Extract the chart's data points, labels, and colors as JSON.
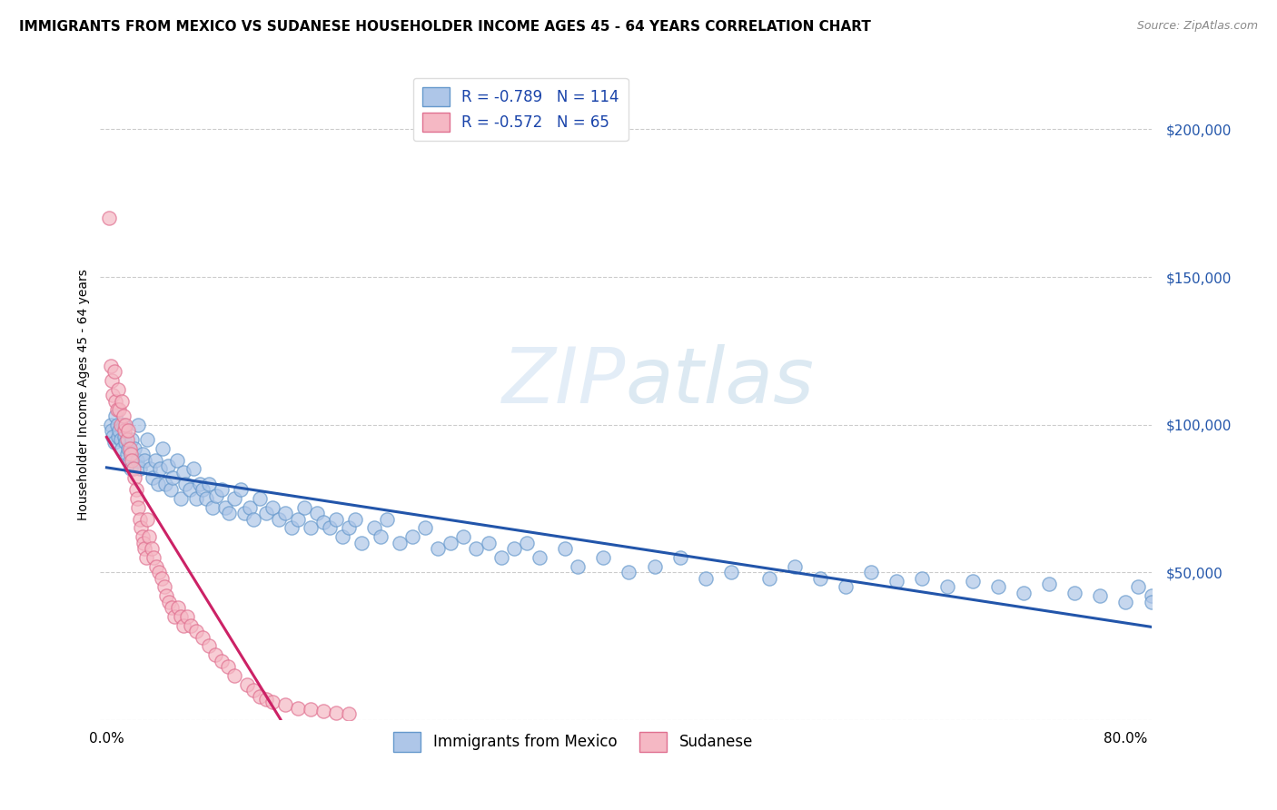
{
  "title": "IMMIGRANTS FROM MEXICO VS SUDANESE HOUSEHOLDER INCOME AGES 45 - 64 YEARS CORRELATION CHART",
  "source": "Source: ZipAtlas.com",
  "ylabel": "Householder Income Ages 45 - 64 years",
  "xlim": [
    -0.005,
    0.82
  ],
  "ylim": [
    0,
    220000
  ],
  "yticks": [
    0,
    50000,
    100000,
    150000,
    200000
  ],
  "ytick_labels": [
    "",
    "$50,000",
    "$100,000",
    "$150,000",
    "$200,000"
  ],
  "xtick_show": [
    0.0,
    0.8
  ],
  "xtick_labels": [
    "0.0%",
    "80.0%"
  ],
  "title_fontsize": 11,
  "source_fontsize": 9,
  "axis_label_fontsize": 10,
  "tick_fontsize": 10,
  "blue_scatter_face": "#aec6e8",
  "blue_scatter_edge": "#6699cc",
  "pink_scatter_face": "#f5b8c4",
  "pink_scatter_edge": "#e07090",
  "line_blue": "#2255aa",
  "line_pink": "#cc2266",
  "watermark_color": "#c8ddf0",
  "R_mexico": -0.789,
  "N_mexico": 114,
  "R_sudanese": -0.572,
  "N_sudanese": 65,
  "mexico_x": [
    0.003,
    0.004,
    0.005,
    0.006,
    0.007,
    0.008,
    0.009,
    0.01,
    0.011,
    0.012,
    0.013,
    0.014,
    0.015,
    0.016,
    0.017,
    0.018,
    0.019,
    0.02,
    0.022,
    0.024,
    0.025,
    0.026,
    0.028,
    0.03,
    0.032,
    0.034,
    0.036,
    0.038,
    0.04,
    0.042,
    0.044,
    0.046,
    0.048,
    0.05,
    0.052,
    0.055,
    0.058,
    0.06,
    0.062,
    0.065,
    0.068,
    0.07,
    0.073,
    0.075,
    0.078,
    0.08,
    0.083,
    0.086,
    0.09,
    0.093,
    0.096,
    0.1,
    0.105,
    0.108,
    0.112,
    0.115,
    0.12,
    0.125,
    0.13,
    0.135,
    0.14,
    0.145,
    0.15,
    0.155,
    0.16,
    0.165,
    0.17,
    0.175,
    0.18,
    0.185,
    0.19,
    0.195,
    0.2,
    0.21,
    0.215,
    0.22,
    0.23,
    0.24,
    0.25,
    0.26,
    0.27,
    0.28,
    0.29,
    0.3,
    0.31,
    0.32,
    0.33,
    0.34,
    0.36,
    0.37,
    0.39,
    0.41,
    0.43,
    0.45,
    0.47,
    0.49,
    0.52,
    0.54,
    0.56,
    0.58,
    0.6,
    0.62,
    0.64,
    0.66,
    0.68,
    0.7,
    0.72,
    0.74,
    0.76,
    0.78,
    0.8,
    0.81,
    0.82,
    0.82
  ],
  "mexico_y": [
    100000,
    98000,
    96000,
    94000,
    103000,
    100000,
    96000,
    98000,
    95000,
    92000,
    100000,
    96000,
    94000,
    90000,
    92000,
    88000,
    85000,
    95000,
    92000,
    88000,
    100000,
    85000,
    90000,
    88000,
    95000,
    85000,
    82000,
    88000,
    80000,
    85000,
    92000,
    80000,
    86000,
    78000,
    82000,
    88000,
    75000,
    84000,
    80000,
    78000,
    85000,
    75000,
    80000,
    78000,
    75000,
    80000,
    72000,
    76000,
    78000,
    72000,
    70000,
    75000,
    78000,
    70000,
    72000,
    68000,
    75000,
    70000,
    72000,
    68000,
    70000,
    65000,
    68000,
    72000,
    65000,
    70000,
    67000,
    65000,
    68000,
    62000,
    65000,
    68000,
    60000,
    65000,
    62000,
    68000,
    60000,
    62000,
    65000,
    58000,
    60000,
    62000,
    58000,
    60000,
    55000,
    58000,
    60000,
    55000,
    58000,
    52000,
    55000,
    50000,
    52000,
    55000,
    48000,
    50000,
    48000,
    52000,
    48000,
    45000,
    50000,
    47000,
    48000,
    45000,
    47000,
    45000,
    43000,
    46000,
    43000,
    42000,
    40000,
    45000,
    42000,
    40000
  ],
  "sudanese_x": [
    0.002,
    0.003,
    0.004,
    0.005,
    0.006,
    0.007,
    0.008,
    0.009,
    0.01,
    0.011,
    0.012,
    0.013,
    0.014,
    0.015,
    0.016,
    0.017,
    0.018,
    0.019,
    0.02,
    0.021,
    0.022,
    0.023,
    0.024,
    0.025,
    0.026,
    0.027,
    0.028,
    0.029,
    0.03,
    0.031,
    0.032,
    0.033,
    0.035,
    0.037,
    0.039,
    0.041,
    0.043,
    0.045,
    0.047,
    0.049,
    0.051,
    0.053,
    0.056,
    0.058,
    0.06,
    0.063,
    0.066,
    0.07,
    0.075,
    0.08,
    0.085,
    0.09,
    0.095,
    0.1,
    0.11,
    0.115,
    0.12,
    0.125,
    0.13,
    0.14,
    0.15,
    0.16,
    0.17,
    0.18,
    0.19
  ],
  "sudanese_y": [
    170000,
    120000,
    115000,
    110000,
    118000,
    108000,
    105000,
    112000,
    105000,
    100000,
    108000,
    103000,
    98000,
    100000,
    95000,
    98000,
    92000,
    90000,
    88000,
    85000,
    82000,
    78000,
    75000,
    72000,
    68000,
    65000,
    62000,
    60000,
    58000,
    55000,
    68000,
    62000,
    58000,
    55000,
    52000,
    50000,
    48000,
    45000,
    42000,
    40000,
    38000,
    35000,
    38000,
    35000,
    32000,
    35000,
    32000,
    30000,
    28000,
    25000,
    22000,
    20000,
    18000,
    15000,
    12000,
    10000,
    8000,
    7000,
    6000,
    5000,
    4000,
    3500,
    3000,
    2500,
    2000
  ]
}
